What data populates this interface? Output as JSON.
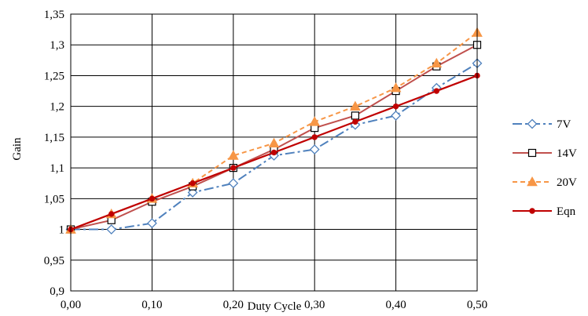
{
  "chart_data": {
    "type": "line",
    "xlabel": "Duty Cycle",
    "ylabel": "Gain",
    "xlim": [
      0,
      0.5
    ],
    "ylim": [
      0.9,
      1.35
    ],
    "x_ticks": [
      0,
      0.1,
      0.2,
      0.3,
      0.4,
      0.5
    ],
    "x_tick_labels": [
      "0,00",
      "0,10",
      "0,20",
      "0,30",
      "0,40",
      "0,50"
    ],
    "y_ticks": [
      0.9,
      0.95,
      1.0,
      1.05,
      1.1,
      1.15,
      1.2,
      1.25,
      1.3,
      1.35
    ],
    "y_tick_labels": [
      "0,9",
      "0,95",
      "1",
      "1,05",
      "1,1",
      "1,15",
      "1,2",
      "1,25",
      "1,3",
      "1,35"
    ],
    "grid": true,
    "legend_position": "right",
    "x": [
      0,
      0.05,
      0.1,
      0.15,
      0.2,
      0.25,
      0.3,
      0.35,
      0.4,
      0.45,
      0.5
    ],
    "series": [
      {
        "name": "7V",
        "color": "#4f81bd",
        "marker": "diamond-open",
        "dash": "dash-dot",
        "values": [
          1.0,
          1.0,
          1.01,
          1.06,
          1.075,
          1.12,
          1.13,
          1.17,
          1.185,
          1.23,
          1.27
        ]
      },
      {
        "name": "14V",
        "color": "#c0504d",
        "marker": "square-open",
        "dash": "solid",
        "values": [
          1.0,
          1.015,
          1.045,
          1.07,
          1.1,
          1.13,
          1.165,
          1.185,
          1.225,
          1.265,
          1.3
        ]
      },
      {
        "name": "20V",
        "color": "#f79646",
        "marker": "triangle-filled",
        "dash": "dashed",
        "values": [
          1.0,
          1.025,
          1.05,
          1.075,
          1.12,
          1.14,
          1.175,
          1.2,
          1.23,
          1.27,
          1.32
        ]
      },
      {
        "name": "Eqn",
        "color": "#c00000",
        "marker": "circle-filled",
        "dash": "solid",
        "values": [
          1.0,
          1.025,
          1.05,
          1.075,
          1.1,
          1.125,
          1.15,
          1.175,
          1.2,
          1.225,
          1.25
        ]
      }
    ]
  }
}
